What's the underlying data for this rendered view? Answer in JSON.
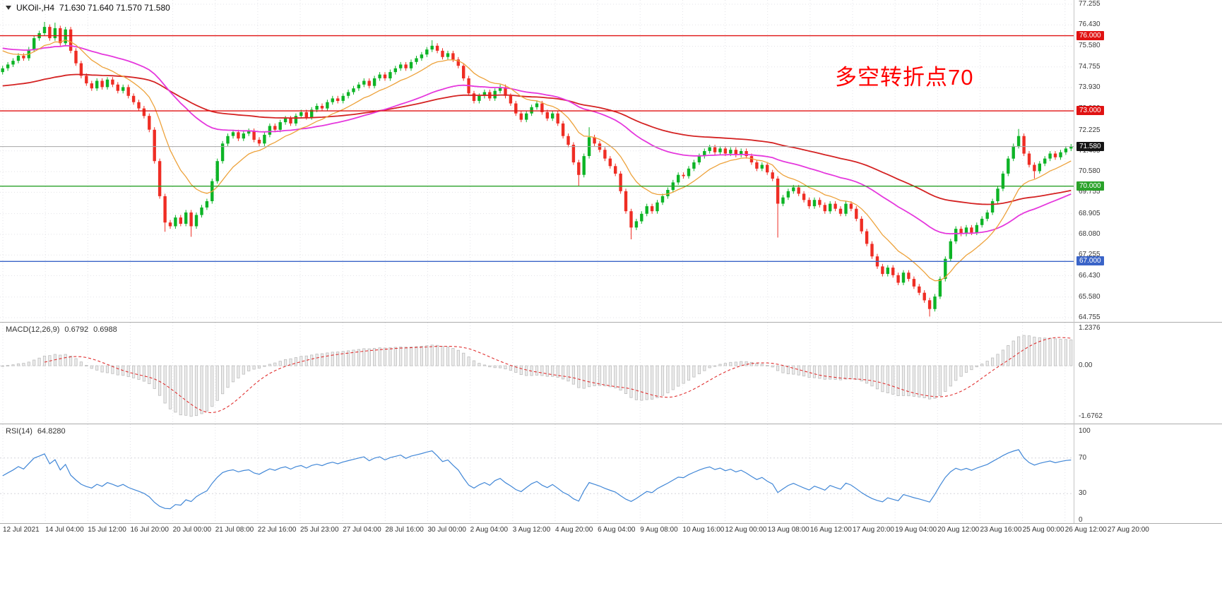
{
  "colors": {
    "up": "#0db426",
    "down": "#ef2d24",
    "ma_fast": "#eda23b",
    "ma_mid": "#e538dd",
    "ma_slow": "#d42222",
    "level_red": "#e01212",
    "level_green": "#2aa22a",
    "level_blue": "#3a64c8",
    "current_line": "#a6a6a6",
    "current_tag_bg": "#141414",
    "macd_hist": "#bdbdbd",
    "macd_hist_fill": "#ececec",
    "macd_signal": "#e03030",
    "rsi_line": "#4187d7",
    "grid": "#e3e3e8"
  },
  "header": {
    "symbol": "UKOil-,H4",
    "ohlc": "71.630 71.640 71.570 71.580"
  },
  "annotation": {
    "text": "多空转折点70",
    "color": "#ff0000"
  },
  "price_scale": {
    "max_value": 77.255,
    "min_value": 64.755,
    "ticks": [
      "77.255",
      "76.430",
      "75.580",
      "74.755",
      "73.930",
      "73.080",
      "72.225",
      "71.405",
      "70.580",
      "69.755",
      "68.905",
      "68.080",
      "67.255",
      "66.430",
      "65.580",
      "64.755"
    ]
  },
  "levels": [
    {
      "value": 76.0,
      "label": "76.000",
      "color_key": "level_red"
    },
    {
      "value": 73.0,
      "label": "73.000",
      "color_key": "level_red"
    },
    {
      "value": 70.0,
      "label": "70.000",
      "color_key": "level_green"
    },
    {
      "value": 67.0,
      "label": "67.000",
      "color_key": "level_blue"
    }
  ],
  "current_price": {
    "value": 71.58,
    "label": "71.580"
  },
  "chart_data": {
    "type": "candlestick",
    "symbol": "UKOil-",
    "timeframe": "H4",
    "x_labels": [
      "12 Jul 2021",
      "14 Jul 04:00",
      "15 Jul 12:00",
      "16 Jul 20:00",
      "20 Jul 00:00",
      "21 Jul 08:00",
      "22 Jul 16:00",
      "25 Jul 23:00",
      "27 Jul 04:00",
      "28 Jul 16:00",
      "30 Jul 00:00",
      "2 Aug 04:00",
      "3 Aug 12:00",
      "4 Aug 20:00",
      "6 Aug 04:00",
      "9 Aug 08:00",
      "10 Aug 16:00",
      "12 Aug 00:00",
      "13 Aug 08:00",
      "16 Aug 12:00",
      "17 Aug 20:00",
      "19 Aug 04:00",
      "20 Aug 12:00",
      "23 Aug 16:00",
      "25 Aug 00:00",
      "26 Aug 12:00",
      "27 Aug 20:00"
    ],
    "first_open": 74.55,
    "default_wick": 0.1,
    "closes": [
      74.7,
      74.85,
      75.0,
      75.2,
      75.1,
      75.45,
      75.9,
      76.1,
      76.35,
      75.9,
      76.3,
      75.7,
      76.25,
      75.4,
      74.9,
      74.4,
      74.1,
      73.9,
      74.2,
      73.95,
      74.25,
      74.05,
      73.8,
      73.95,
      73.6,
      73.35,
      73.1,
      72.8,
      72.25,
      71.0,
      69.6,
      68.55,
      68.4,
      68.75,
      68.5,
      68.95,
      68.4,
      68.85,
      69.15,
      69.4,
      70.2,
      71.0,
      71.7,
      72.0,
      72.15,
      71.9,
      72.1,
      72.2,
      71.85,
      71.7,
      72.05,
      72.4,
      72.25,
      72.55,
      72.7,
      72.5,
      72.8,
      72.95,
      72.75,
      73.05,
      73.2,
      73.1,
      73.35,
      73.5,
      73.4,
      73.6,
      73.75,
      73.9,
      74.05,
      74.2,
      74.0,
      74.3,
      74.45,
      74.3,
      74.55,
      74.7,
      74.85,
      74.7,
      74.95,
      75.1,
      75.25,
      75.45,
      75.6,
      75.4,
      75.15,
      75.3,
      75.05,
      74.8,
      74.3,
      73.7,
      73.4,
      73.6,
      73.75,
      73.5,
      73.8,
      73.95,
      73.6,
      73.3,
      72.9,
      72.65,
      72.9,
      73.15,
      73.3,
      72.95,
      72.7,
      72.9,
      72.5,
      72.0,
      71.65,
      70.95,
      70.45,
      71.2,
      71.95,
      71.7,
      71.45,
      71.1,
      70.8,
      70.5,
      69.8,
      69.0,
      68.35,
      68.6,
      68.9,
      69.2,
      69.0,
      69.35,
      69.6,
      69.85,
      70.15,
      70.45,
      70.4,
      70.7,
      70.95,
      71.2,
      71.4,
      71.55,
      71.35,
      71.5,
      71.3,
      71.45,
      71.25,
      71.4,
      71.2,
      70.95,
      70.7,
      70.85,
      70.55,
      70.3,
      69.3,
      69.55,
      69.8,
      69.95,
      69.7,
      69.45,
      69.2,
      69.45,
      69.25,
      69.0,
      69.3,
      69.1,
      68.9,
      69.3,
      69.1,
      68.7,
      68.2,
      67.7,
      67.2,
      66.8,
      66.5,
      66.75,
      66.45,
      66.15,
      66.55,
      66.3,
      66.0,
      65.75,
      65.45,
      65.1,
      65.6,
      66.3,
      67.1,
      67.8,
      68.3,
      68.1,
      68.35,
      68.15,
      68.45,
      68.7,
      68.95,
      69.4,
      69.9,
      70.5,
      71.1,
      71.6,
      72.0,
      71.3,
      70.85,
      70.6,
      70.9,
      71.1,
      71.3,
      71.15,
      71.35,
      71.5,
      71.58
    ],
    "wick_overrides": {
      "8": [
        76.55,
        null
      ],
      "10": [
        76.52,
        null
      ],
      "31": [
        null,
        68.18
      ],
      "36": [
        null,
        67.98
      ],
      "82": [
        75.82,
        null
      ],
      "110": [
        null,
        70.02
      ],
      "112": [
        72.35,
        null
      ],
      "120": [
        null,
        67.88
      ],
      "148": [
        null,
        67.95
      ],
      "177": [
        null,
        64.8
      ],
      "194": [
        72.28,
        null
      ],
      "197": [
        null,
        70.3
      ],
      "204": [
        71.68,
        null
      ]
    },
    "moving_averages": [
      {
        "period": 85,
        "seed": 74.0,
        "color_key": "ma_slow",
        "width": 1.8
      },
      {
        "period": 44,
        "seed": 75.5,
        "color_key": "ma_mid",
        "width": 1.8
      },
      {
        "period": 12,
        "seed": 75.4,
        "color_key": "ma_fast",
        "width": 1.3
      }
    ],
    "macd": {
      "name": "MACD(12,26,9)",
      "value_main": "0.6792",
      "value_signal": "0.6988",
      "fast": 12,
      "slow": 26,
      "signal_period": 9,
      "range": [
        -1.6762,
        1.2376
      ],
      "scale_labels": [
        {
          "value": 1.2376,
          "text": "1.2376"
        },
        {
          "value": 0,
          "text": "0.00"
        },
        {
          "value": -1.6762,
          "text": "-1.6762"
        }
      ]
    },
    "rsi": {
      "name": "RSI(14)",
      "value": "64.8280",
      "period": 14,
      "guide_levels": [
        70,
        30
      ],
      "scale_labels": [
        {
          "value": 100,
          "text": "100"
        },
        {
          "value": 70,
          "text": "70"
        },
        {
          "value": 30,
          "text": "30"
        },
        {
          "value": 0,
          "text": "0"
        }
      ]
    }
  }
}
